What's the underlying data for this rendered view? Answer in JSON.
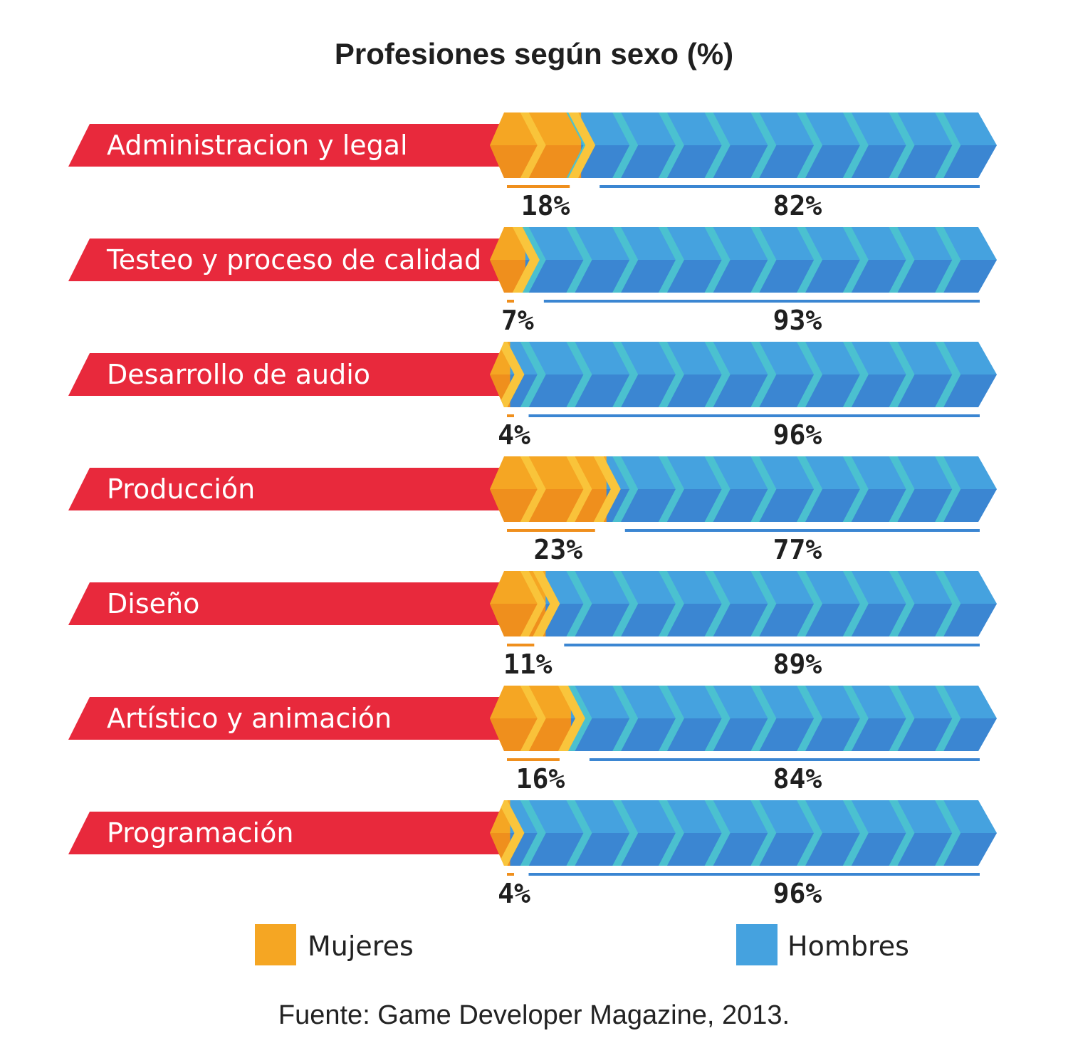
{
  "chart_data": {
    "type": "bar",
    "stacked": true,
    "orientation": "horizontal",
    "title": "Profesiones según sexo (%)",
    "categories": [
      "Administracion y legal",
      "Testeo y proceso de calidad",
      "Desarrollo de audio",
      "Producción",
      "Diseño",
      "Artístico y animación",
      "Programación"
    ],
    "series": [
      {
        "name": "Mujeres",
        "color": "#f5a623",
        "values": [
          18,
          7,
          4,
          23,
          11,
          16,
          4
        ],
        "labels": [
          "18%",
          "7%",
          "4%",
          "23%",
          "11%",
          "16%",
          "4%"
        ]
      },
      {
        "name": "Hombres",
        "color": "#45a2df",
        "values": [
          82,
          93,
          96,
          77,
          89,
          84,
          96
        ],
        "labels": [
          "82%",
          "93%",
          "96%",
          "77%",
          "89%",
          "84%",
          "96%"
        ]
      }
    ],
    "xlim": [
      0,
      100
    ],
    "legend": "bottom",
    "grid": false,
    "source": "Fuente: Game Developer Magazine, 2013."
  },
  "colors": {
    "category_band": "#e8293c",
    "women": "#f5a623",
    "women_dark": "#ef8f1d",
    "women_light": "#f9c53c",
    "men": "#45a2df",
    "men_dark": "#3b86d2",
    "men_light": "#4cc3cf"
  }
}
